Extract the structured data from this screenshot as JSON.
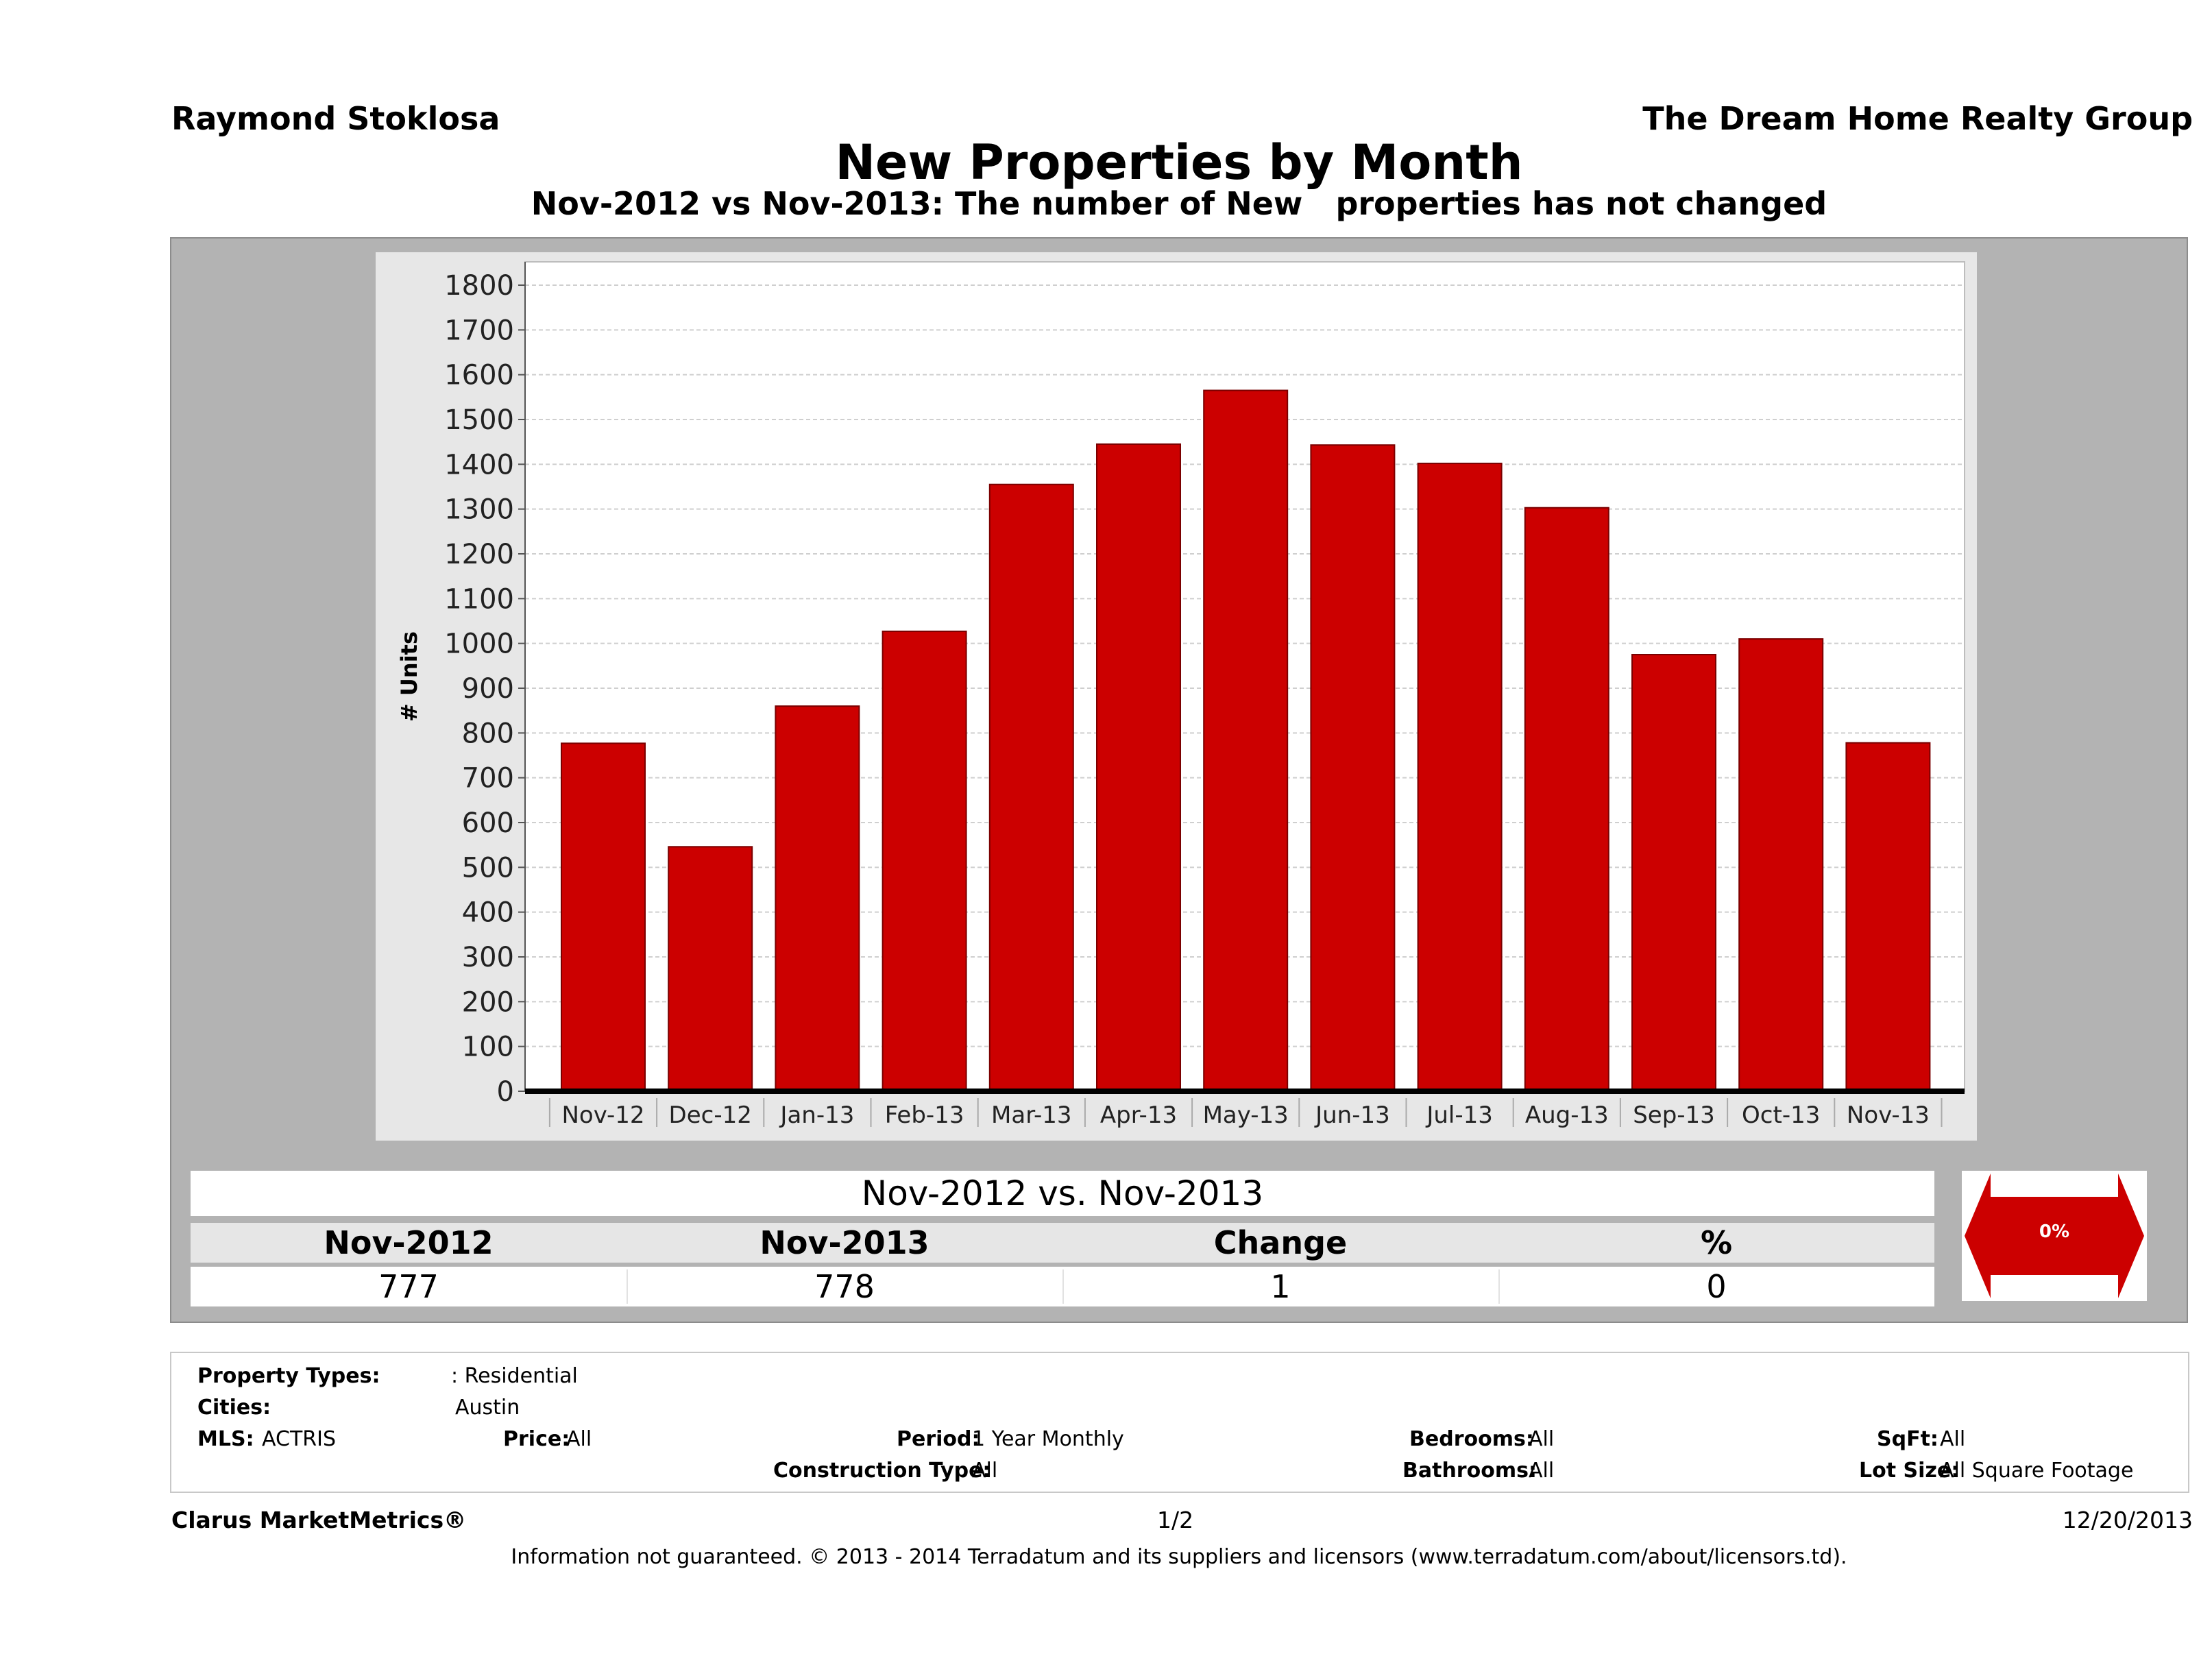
{
  "header": {
    "agent": "Raymond Stoklosa",
    "company": "The Dream Home Realty Group"
  },
  "chart_data": {
    "type": "bar",
    "title": "New Properties by Month",
    "subtitle": "Nov-2012 vs Nov-2013: The number of New   properties has not changed",
    "ylabel": "# Units",
    "xlabel": "",
    "categories": [
      "Nov-12",
      "Dec-12",
      "Jan-13",
      "Feb-13",
      "Mar-13",
      "Apr-13",
      "May-13",
      "Jun-13",
      "Jul-13",
      "Aug-13",
      "Sep-13",
      "Oct-13",
      "Nov-13"
    ],
    "values": [
      777,
      546,
      860,
      1027,
      1355,
      1445,
      1565,
      1443,
      1402,
      1303,
      975,
      1010,
      778
    ],
    "ylim": [
      0,
      1800
    ],
    "yticks": [
      0,
      100,
      200,
      300,
      400,
      500,
      600,
      700,
      800,
      900,
      1000,
      1100,
      1200,
      1300,
      1400,
      1500,
      1600,
      1700,
      1800
    ],
    "bar_color": "#cc0000",
    "grid": true
  },
  "summary": {
    "title": "Nov-2012 vs. Nov-2013",
    "headers": [
      "Nov-2012",
      "Nov-2013",
      "Change",
      "%"
    ],
    "values": [
      "777",
      "778",
      "1",
      "0"
    ],
    "percent_badge": "0%",
    "arrow_color": "#cc0000"
  },
  "filters": {
    "property_types_label": "Property Types:",
    "property_types_value": ": Residential",
    "cities_label": "Cities:",
    "cities_value": "Austin",
    "mls_label": "MLS:",
    "mls_value": "ACTRIS",
    "price_label": "Price:",
    "price_value": "All",
    "period_label": "Period:",
    "period_value": "1 Year Monthly",
    "construction_label": "Construction Type:",
    "construction_value": "All",
    "bedrooms_label": "Bedrooms:",
    "bedrooms_value": "All",
    "bathrooms_label": "Bathrooms:",
    "bathrooms_value": "All",
    "sqft_label": "SqFt:",
    "sqft_value": "All",
    "lot_label": "Lot Size:",
    "lot_value": "All Square Footage"
  },
  "footer": {
    "brand": "Clarus MarketMetrics®",
    "page": "1/2",
    "date": "12/20/2013",
    "disclaimer": "Information not guaranteed. © 2013 - 2014 Terradatum and its suppliers and licensors (www.terradatum.com/about/licensors.td)."
  }
}
